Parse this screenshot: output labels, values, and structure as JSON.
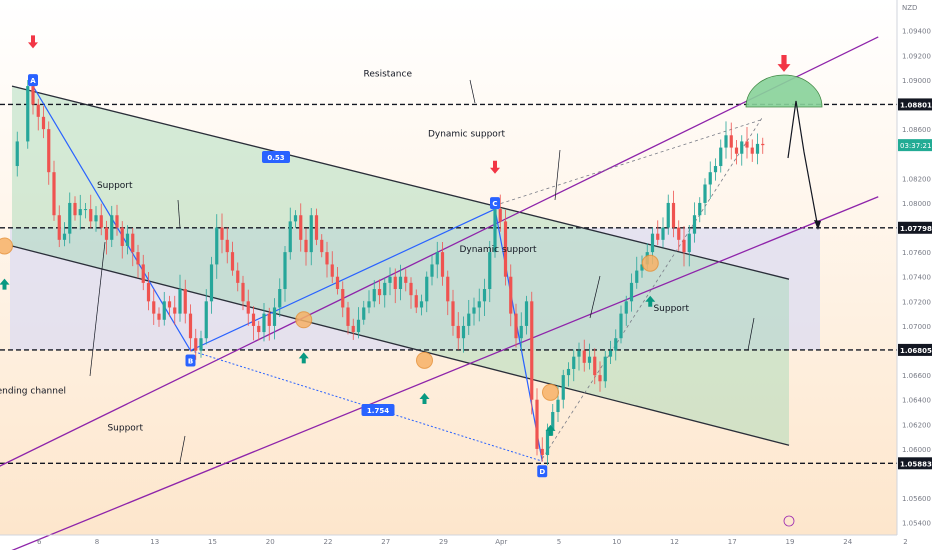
{
  "chart_data": {
    "type": "candlestick",
    "symbol": "",
    "currency": "NZD",
    "y_axis": {
      "min": 1.053,
      "max": 1.0965,
      "ticks": [
        1.094,
        1.092,
        1.09,
        1.086,
        1.082,
        1.08,
        1.076,
        1.074,
        1.072,
        1.07,
        1.066,
        1.064,
        1.062,
        1.06,
        1.056,
        1.054
      ]
    },
    "x_axis": {
      "ticks": [
        {
          "label": "6",
          "bar": 1
        },
        {
          "label": "8",
          "bar": 12
        },
        {
          "label": "13",
          "bar": 23
        },
        {
          "label": "15",
          "bar": 34
        },
        {
          "label": "20",
          "bar": 45
        },
        {
          "label": "22",
          "bar": 56
        },
        {
          "label": "27",
          "bar": 67
        },
        {
          "label": "29",
          "bar": 78
        },
        {
          "label": "Apr",
          "bar": 89
        },
        {
          "label": "5",
          "bar": 100
        },
        {
          "label": "10",
          "bar": 111
        },
        {
          "label": "12",
          "bar": 122
        },
        {
          "label": "17",
          "bar": 133
        },
        {
          "label": "19",
          "bar": 144
        },
        {
          "label": "24",
          "bar": 155
        },
        {
          "label": "2",
          "bar": 166
        }
      ]
    },
    "levels": [
      {
        "name": "resistance",
        "price": 1.08801,
        "label": "1.08801"
      },
      {
        "name": "upper-support",
        "price": 1.07798,
        "label": "1.07798"
      },
      {
        "name": "middle-support",
        "price": 1.06805,
        "label": "1.06805"
      },
      {
        "name": "bottom-support",
        "price": 1.05883,
        "label": "1.05883"
      }
    ],
    "current_price": {
      "price": 1.0847,
      "label": "03:37:21"
    },
    "price_path": [
      [
        0,
        1.083
      ],
      [
        1,
        1.085
      ],
      [
        3,
        1.0895
      ],
      [
        4,
        1.088
      ],
      [
        5,
        1.087
      ],
      [
        6,
        1.086
      ],
      [
        7,
        1.0825
      ],
      [
        8,
        1.079
      ],
      [
        9,
        1.077
      ],
      [
        10,
        1.0775
      ],
      [
        11,
        1.08
      ],
      [
        12,
        1.079
      ],
      [
        13,
        1.0795
      ],
      [
        14,
        1.0795
      ],
      [
        15,
        1.0785
      ],
      [
        16,
        1.079
      ],
      [
        17,
        1.078
      ],
      [
        18,
        1.077
      ],
      [
        19,
        1.079
      ],
      [
        20,
        1.078
      ],
      [
        21,
        1.0765
      ],
      [
        22,
        1.0775
      ],
      [
        23,
        1.076
      ],
      [
        24,
        1.075
      ],
      [
        25,
        1.0735
      ],
      [
        26,
        1.072
      ],
      [
        27,
        1.071
      ],
      [
        28,
        1.0705
      ],
      [
        29,
        1.072
      ],
      [
        30,
        1.0715
      ],
      [
        31,
        1.071
      ],
      [
        32,
        1.073
      ],
      [
        33,
        1.071
      ],
      [
        34,
        1.069
      ],
      [
        35,
        1.068
      ],
      [
        36,
        1.069
      ],
      [
        37,
        1.072
      ],
      [
        38,
        1.075
      ],
      [
        39,
        1.078
      ],
      [
        40,
        1.077
      ],
      [
        41,
        1.076
      ],
      [
        42,
        1.0745
      ],
      [
        43,
        1.0735
      ],
      [
        44,
        1.072
      ],
      [
        45,
        1.071
      ],
      [
        46,
        1.07
      ],
      [
        47,
        1.0695
      ],
      [
        48,
        1.071
      ],
      [
        49,
        1.07
      ],
      [
        50,
        1.0715
      ],
      [
        51,
        1.073
      ],
      [
        52,
        1.076
      ],
      [
        53,
        1.0785
      ],
      [
        54,
        1.079
      ],
      [
        55,
        1.077
      ],
      [
        56,
        1.076
      ],
      [
        57,
        1.079
      ],
      [
        58,
        1.077
      ],
      [
        59,
        1.076
      ],
      [
        60,
        1.075
      ],
      [
        61,
        1.074
      ],
      [
        62,
        1.073
      ],
      [
        63,
        1.0715
      ],
      [
        64,
        1.07
      ],
      [
        65,
        1.0695
      ],
      [
        66,
        1.0705
      ],
      [
        67,
        1.0715
      ],
      [
        68,
        1.072
      ],
      [
        69,
        1.073
      ],
      [
        70,
        1.0725
      ],
      [
        71,
        1.0735
      ],
      [
        72,
        1.074
      ],
      [
        73,
        1.073
      ],
      [
        74,
        1.074
      ],
      [
        75,
        1.0735
      ],
      [
        76,
        1.0725
      ],
      [
        77,
        1.0715
      ],
      [
        78,
        1.072
      ],
      [
        79,
        1.074
      ],
      [
        80,
        1.075
      ],
      [
        81,
        1.076
      ],
      [
        82,
        1.074
      ],
      [
        83,
        1.072
      ],
      [
        84,
        1.07
      ],
      [
        85,
        1.069
      ],
      [
        86,
        1.07
      ],
      [
        87,
        1.071
      ],
      [
        88,
        1.0715
      ],
      [
        89,
        1.072
      ],
      [
        90,
        1.073
      ],
      [
        91,
        1.076
      ],
      [
        92,
        1.0795
      ],
      [
        93,
        1.0785
      ],
      [
        94,
        1.074
      ],
      [
        95,
        1.071
      ],
      [
        96,
        1.069
      ],
      [
        97,
        1.07
      ],
      [
        98,
        1.072
      ],
      [
        99,
        1.064
      ],
      [
        100,
        1.06
      ],
      [
        101,
        1.0595
      ],
      [
        102,
        1.0615
      ],
      [
        103,
        1.063
      ],
      [
        104,
        1.064
      ],
      [
        105,
        1.066
      ],
      [
        106,
        1.0665
      ],
      [
        107,
        1.0675
      ],
      [
        108,
        1.068
      ],
      [
        109,
        1.067
      ],
      [
        110,
        1.0675
      ],
      [
        111,
        1.066
      ],
      [
        112,
        1.0655
      ],
      [
        113,
        1.0675
      ],
      [
        114,
        1.068
      ],
      [
        115,
        1.069
      ],
      [
        116,
        1.071
      ],
      [
        117,
        1.072
      ],
      [
        118,
        1.0735
      ],
      [
        119,
        1.0745
      ],
      [
        120,
        1.075
      ],
      [
        121,
        1.076
      ],
      [
        122,
        1.0775
      ],
      [
        123,
        1.077
      ],
      [
        124,
        1.078
      ],
      [
        125,
        1.08
      ],
      [
        126,
        1.078
      ],
      [
        127,
        1.077
      ],
      [
        128,
        1.076
      ],
      [
        129,
        1.0775
      ],
      [
        130,
        1.079
      ],
      [
        131,
        1.08
      ],
      [
        132,
        1.0815
      ],
      [
        133,
        1.0825
      ],
      [
        134,
        1.083
      ],
      [
        135,
        1.0845
      ],
      [
        136,
        1.0855
      ],
      [
        137,
        1.0845
      ],
      [
        138,
        1.084
      ],
      [
        139,
        1.085
      ],
      [
        140,
        1.0845
      ],
      [
        141,
        1.084
      ],
      [
        142,
        1.0848
      ],
      [
        143,
        1.0847
      ]
    ],
    "channel_lines": [
      {
        "name": "descending-channel-top",
        "from": [
          0,
          1.0895
        ],
        "to": [
          148,
          1.0738
        ]
      },
      {
        "name": "descending-channel-bottom",
        "from": [
          0,
          1.0765
        ],
        "to": [
          148,
          1.0603
        ]
      },
      {
        "name": "dynamic-support-upper",
        "from": [
          -10,
          1.057
        ],
        "to": [
          165,
          1.0935
        ]
      },
      {
        "name": "dynamic-support-lower",
        "from": [
          -10,
          1.05
        ],
        "to": [
          165,
          1.0805
        ]
      }
    ],
    "waves": [
      {
        "label": "A",
        "bar": 4,
        "price": 1.0895
      },
      {
        "label": "B",
        "bar": 34,
        "price": 1.068
      },
      {
        "label": "C",
        "bar": 92,
        "price": 1.0795
      },
      {
        "label": "D",
        "bar": 101,
        "price": 1.059
      }
    ],
    "ratios": [
      "0.53",
      "1.754"
    ],
    "annotations": [
      {
        "text": "Resistance",
        "bar": 83,
        "price": 1.0903
      },
      {
        "text": "Dynamic support",
        "bar": 98,
        "price": 1.0854
      },
      {
        "text": "Support",
        "bar": 31,
        "price": 1.0812
      },
      {
        "text": "Dynamic support",
        "bar": 104,
        "price": 1.076
      },
      {
        "text": "Support",
        "bar": 137,
        "price": 1.0712
      },
      {
        "text": "Descending channel",
        "bar": 13,
        "price": 1.0645
      },
      {
        "text": "Support",
        "bar": 33,
        "price": 1.0615
      }
    ]
  }
}
